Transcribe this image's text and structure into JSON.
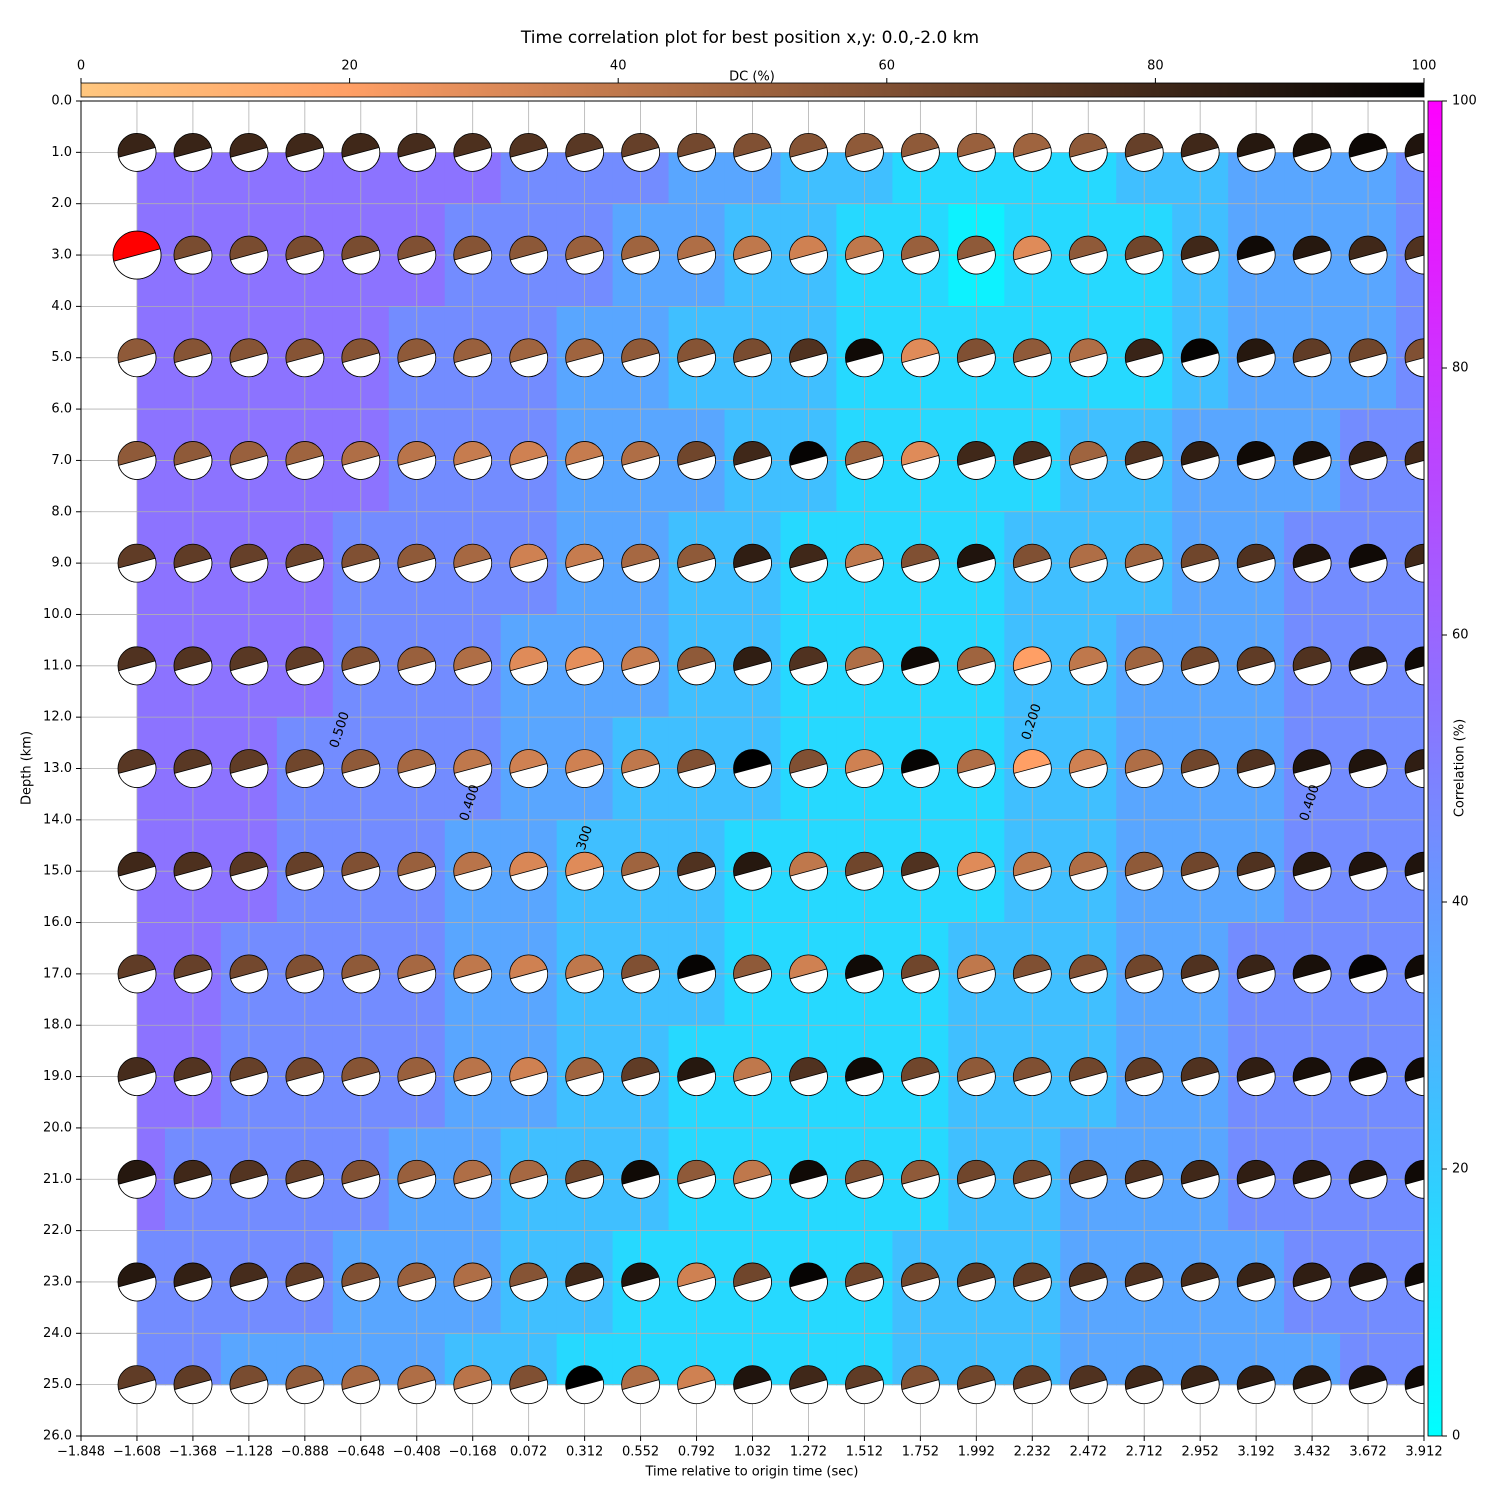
{
  "chart_data": {
    "type": "contour",
    "title": "Time correlation plot for best position x,y: 0.0,-2.0 km",
    "x_label": "Time relative to origin time (sec)",
    "y_label": "Depth (km)",
    "colorbar_label": "Correlation (%)",
    "dc_colorbar_label": "DC (%)",
    "xlim": [
      -1.848,
      3.912
    ],
    "ylim": [
      0,
      26
    ],
    "y_inverted": true,
    "grid": true,
    "xticks": [
      {
        "value": -1.848,
        "label": "−1.848"
      },
      {
        "value": -1.608,
        "label": "−1.608"
      },
      {
        "value": -1.368,
        "label": "−1.368"
      },
      {
        "value": -1.128,
        "label": "−1.128"
      },
      {
        "value": -0.888,
        "label": "−0.888"
      },
      {
        "value": -0.648,
        "label": "−0.648"
      },
      {
        "value": -0.408,
        "label": "−0.408"
      },
      {
        "value": -0.168,
        "label": "−0.168"
      },
      0.072,
      0.312,
      0.552,
      0.792,
      1.032,
      1.272,
      1.512,
      1.752,
      1.992,
      2.232,
      2.472,
      2.712,
      2.952,
      3.192,
      3.432,
      3.672,
      3.912
    ],
    "yticks": [
      {
        "value": 0,
        "label": "0.0"
      },
      {
        "value": 1,
        "label": "1.0"
      },
      {
        "value": 2,
        "label": "2.0"
      },
      {
        "value": 3,
        "label": "3.0"
      },
      {
        "value": 4,
        "label": "4.0"
      },
      {
        "value": 5,
        "label": "5.0"
      },
      {
        "value": 6,
        "label": "6.0"
      },
      {
        "value": 7,
        "label": "7.0"
      },
      {
        "value": 8,
        "label": "8.0"
      },
      {
        "value": 9,
        "label": "9.0"
      },
      {
        "value": 10,
        "label": "10.0"
      },
      {
        "value": 11,
        "label": "11.0"
      },
      {
        "value": 12,
        "label": "12.0"
      },
      {
        "value": 13,
        "label": "13.0"
      },
      {
        "value": 14,
        "label": "14.0"
      },
      {
        "value": 15,
        "label": "15.0"
      },
      {
        "value": 16,
        "label": "16.0"
      },
      {
        "value": 17,
        "label": "17.0"
      },
      {
        "value": 18,
        "label": "18.0"
      },
      {
        "value": 19,
        "label": "19.0"
      },
      {
        "value": 20,
        "label": "20.0"
      },
      {
        "value": 21,
        "label": "21.0"
      },
      {
        "value": 22,
        "label": "22.0"
      },
      {
        "value": 23,
        "label": "23.0"
      },
      {
        "value": 24,
        "label": "24.0"
      },
      {
        "value": 25,
        "label": "25.0"
      },
      {
        "value": 26,
        "label": "26.0"
      }
    ],
    "clim": [
      0,
      100
    ],
    "cticks": [
      0,
      20,
      40,
      60,
      80,
      100
    ],
    "dc_lim": [
      0,
      100
    ],
    "dc_ticks": [
      0,
      20,
      40,
      60,
      80,
      100
    ],
    "x": [
      -1.608,
      -1.368,
      -1.128,
      -0.888,
      -0.648,
      -0.408,
      -0.168,
      0.072,
      0.312,
      0.552,
      0.792,
      1.032,
      1.272,
      1.512,
      1.752,
      1.992,
      2.232,
      2.472,
      2.712,
      2.952,
      3.192,
      3.432,
      3.672,
      3.912
    ],
    "y": [
      1,
      3,
      5,
      7,
      9,
      11,
      13,
      15,
      17,
      19,
      21,
      23,
      25
    ],
    "correlation": [
      [
        57,
        57,
        57,
        57,
        57,
        57,
        52,
        46,
        46,
        42,
        36,
        34,
        26,
        22,
        16,
        16,
        16,
        16,
        20,
        26,
        30,
        36,
        36,
        40
      ],
      [
        57,
        57,
        57,
        57,
        57,
        54,
        46,
        46,
        46,
        36,
        36,
        26,
        26,
        16,
        12,
        8,
        16,
        16,
        18,
        26,
        30,
        36,
        36,
        40
      ],
      [
        57,
        57,
        57,
        57,
        57,
        46,
        46,
        46,
        38,
        36,
        26,
        26,
        20,
        16,
        16,
        16,
        16,
        16,
        18,
        26,
        36,
        36,
        36,
        40
      ],
      [
        57,
        57,
        57,
        57,
        50,
        46,
        46,
        46,
        36,
        36,
        30,
        26,
        20,
        16,
        16,
        16,
        16,
        22,
        26,
        36,
        36,
        36,
        40,
        46
      ],
      [
        57,
        57,
        57,
        57,
        46,
        46,
        46,
        40,
        36,
        36,
        26,
        26,
        16,
        16,
        16,
        16,
        20,
        26,
        26,
        36,
        36,
        40,
        46,
        46
      ],
      [
        57,
        57,
        57,
        52,
        46,
        46,
        46,
        36,
        36,
        36,
        26,
        26,
        16,
        16,
        16,
        16,
        20,
        26,
        30,
        36,
        36,
        40,
        46,
        46
      ],
      [
        57,
        57,
        56,
        46,
        46,
        46,
        42,
        36,
        34,
        26,
        26,
        24,
        16,
        16,
        16,
        16,
        22,
        26,
        30,
        36,
        36,
        46,
        46,
        46
      ],
      [
        57,
        57,
        50,
        46,
        46,
        46,
        36,
        36,
        26,
        26,
        26,
        16,
        16,
        16,
        16,
        16,
        26,
        26,
        36,
        36,
        38,
        46,
        46,
        46
      ],
      [
        57,
        57,
        46,
        46,
        46,
        46,
        36,
        36,
        26,
        26,
        24,
        16,
        16,
        16,
        16,
        20,
        26,
        26,
        36,
        36,
        40,
        46,
        46,
        46
      ],
      [
        57,
        52,
        46,
        46,
        46,
        40,
        36,
        34,
        26,
        26,
        16,
        16,
        16,
        16,
        16,
        22,
        26,
        28,
        36,
        36,
        40,
        46,
        46,
        46
      ],
      [
        50,
        46,
        46,
        46,
        40,
        36,
        36,
        26,
        26,
        22,
        16,
        16,
        16,
        16,
        16,
        26,
        26,
        30,
        36,
        36,
        40,
        46,
        46,
        46
      ],
      [
        46,
        46,
        46,
        40,
        36,
        36,
        30,
        26,
        26,
        16,
        16,
        16,
        16,
        16,
        20,
        26,
        26,
        30,
        36,
        36,
        36,
        42,
        46,
        46
      ],
      [
        46,
        42,
        36,
        36,
        36,
        30,
        26,
        26,
        16,
        16,
        16,
        16,
        16,
        16,
        26,
        26,
        26,
        30,
        36,
        36,
        36,
        36,
        42,
        46
      ]
    ],
    "dc": [
      [
        82,
        82,
        80,
        80,
        80,
        78,
        76,
        74,
        72,
        68,
        64,
        60,
        58,
        55,
        55,
        52,
        50,
        55,
        68,
        80,
        88,
        92,
        96,
        90
      ],
      [
        60,
        62,
        62,
        62,
        62,
        60,
        58,
        56,
        52,
        50,
        45,
        40,
        35,
        40,
        52,
        55,
        30,
        55,
        65,
        80,
        95,
        88,
        80,
        75
      ],
      [
        55,
        58,
        58,
        58,
        58,
        55,
        52,
        50,
        50,
        55,
        58,
        62,
        75,
        95,
        30,
        60,
        55,
        45,
        82,
        98,
        88,
        70,
        65,
        60
      ],
      [
        55,
        55,
        52,
        50,
        45,
        42,
        38,
        35,
        38,
        45,
        65,
        80,
        98,
        50,
        30,
        80,
        78,
        50,
        75,
        85,
        95,
        92,
        85,
        80
      ],
      [
        70,
        70,
        68,
        66,
        60,
        55,
        48,
        35,
        38,
        48,
        55,
        85,
        80,
        40,
        60,
        90,
        60,
        45,
        50,
        65,
        75,
        90,
        95,
        80
      ],
      [
        75,
        74,
        72,
        70,
        60,
        52,
        45,
        30,
        28,
        38,
        55,
        85,
        75,
        45,
        95,
        50,
        20,
        40,
        50,
        65,
        70,
        75,
        90,
        95
      ],
      [
        72,
        72,
        70,
        65,
        55,
        48,
        40,
        35,
        35,
        40,
        60,
        100,
        60,
        35,
        98,
        45,
        20,
        35,
        45,
        65,
        75,
        90,
        90,
        85
      ],
      [
        80,
        76,
        72,
        68,
        60,
        52,
        42,
        32,
        30,
        50,
        75,
        88,
        40,
        65,
        75,
        30,
        40,
        45,
        55,
        65,
        75,
        88,
        90,
        90
      ],
      [
        70,
        68,
        64,
        60,
        55,
        48,
        40,
        35,
        40,
        60,
        98,
        55,
        35,
        95,
        65,
        40,
        60,
        60,
        65,
        75,
        82,
        92,
        98,
        95
      ],
      [
        78,
        74,
        68,
        64,
        58,
        52,
        42,
        35,
        50,
        70,
        88,
        40,
        75,
        95,
        65,
        55,
        60,
        65,
        70,
        75,
        85,
        92,
        95,
        95
      ],
      [
        88,
        80,
        74,
        68,
        60,
        52,
        45,
        48,
        65,
        95,
        55,
        40,
        95,
        60,
        55,
        65,
        65,
        70,
        75,
        80,
        85,
        88,
        90,
        95
      ],
      [
        88,
        84,
        78,
        70,
        60,
        52,
        45,
        58,
        80,
        90,
        35,
        65,
        98,
        65,
        65,
        70,
        70,
        75,
        75,
        78,
        82,
        85,
        90,
        95
      ],
      [
        70,
        70,
        62,
        55,
        48,
        45,
        42,
        60,
        100,
        45,
        35,
        90,
        80,
        70,
        60,
        65,
        70,
        75,
        80,
        82,
        85,
        88,
        92,
        95
      ]
    ],
    "best": {
      "x": -1.608,
      "y": 3,
      "color": "#ff0000"
    },
    "contour_labels": [
      "0.500",
      "0.400",
      "300",
      "0.200",
      "0.400"
    ]
  }
}
